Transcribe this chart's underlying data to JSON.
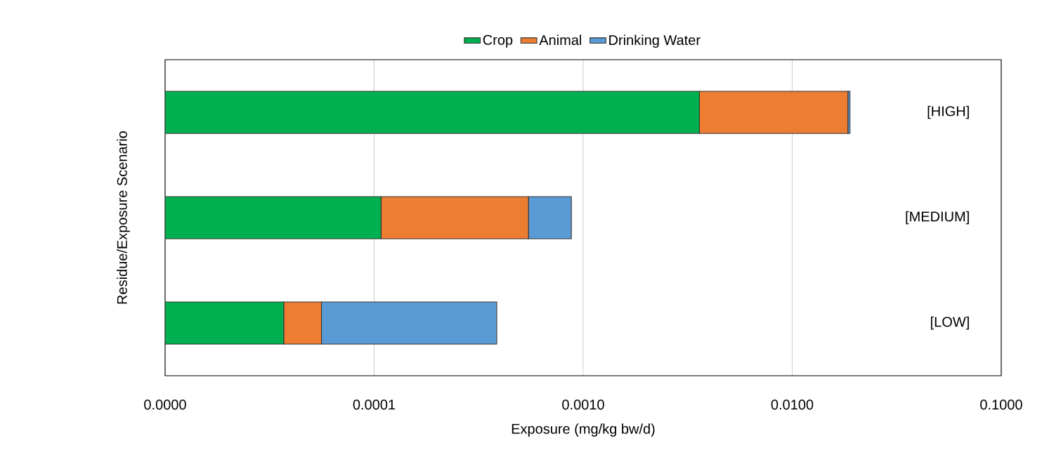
{
  "chart_data": {
    "type": "bar",
    "orientation": "horizontal",
    "stacked": true,
    "log": "x",
    "xlabel": "Exposure (mg/kg bw/d)",
    "ylabel": "Residue/Exposure Scenario",
    "categories": [
      "[HIGH]",
      "[MEDIUM]",
      "[LOW]"
    ],
    "series": [
      {
        "name": "Crop",
        "color": "#00b050",
        "values": [
          0.0036,
          0.000108,
          3.7e-05
        ]
      },
      {
        "name": "Animal",
        "color": "#ed7d31",
        "values": [
          0.0149,
          0.00044,
          1.9e-05
        ]
      },
      {
        "name": "Drinking Water",
        "color": "#5b9bd5",
        "values": [
          0.0004,
          0.00033,
          0.00033
        ]
      }
    ],
    "xlim": [
      1e-05,
      0.1
    ],
    "xticks": [
      {
        "value": 1e-05,
        "label": "0.0000"
      },
      {
        "value": 0.0001,
        "label": "0.0001"
      },
      {
        "value": 0.001,
        "label": "0.0010"
      },
      {
        "value": 0.01,
        "label": "0.0100"
      },
      {
        "value": 0.1,
        "label": "0.1000"
      }
    ],
    "grid": "x",
    "legend": "top"
  }
}
